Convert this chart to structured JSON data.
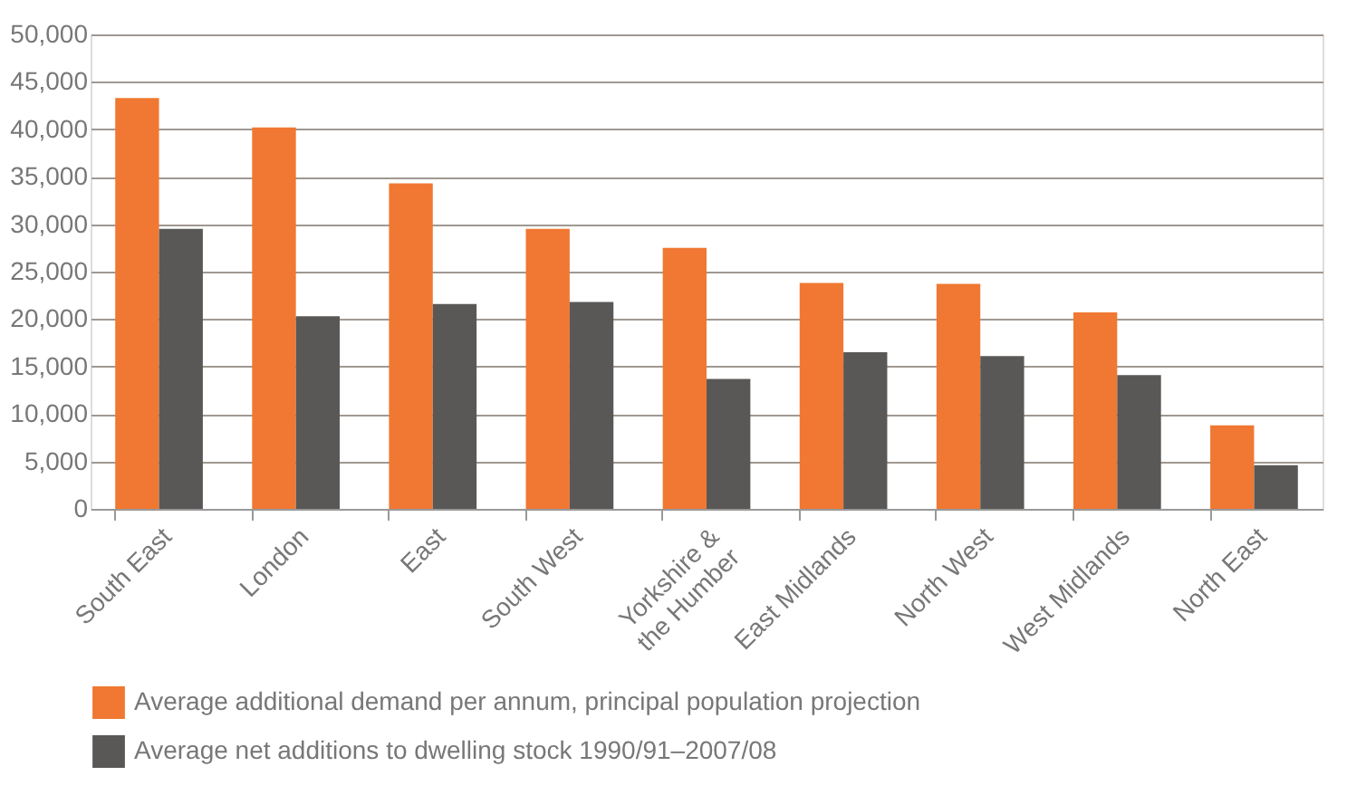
{
  "chart_data": {
    "type": "bar",
    "categories": [
      "South East",
      "London",
      "East",
      "South West",
      "Yorkshire &\nthe Humber",
      "East Midlands",
      "North West",
      "West Midlands",
      "North East"
    ],
    "series": [
      {
        "name": "Average additional demand per annum, principal population projection",
        "color": "#f07832",
        "values": [
          43300,
          40200,
          34300,
          29500,
          27500,
          23800,
          23700,
          20700,
          8800
        ]
      },
      {
        "name": "Average net additions to dwelling stock 1990/91–2007/08",
        "color": "#5a5856",
        "values": [
          29500,
          20300,
          21600,
          21800,
          13700,
          16500,
          16100,
          14100,
          4600
        ]
      }
    ],
    "ylim": [
      0,
      50000
    ],
    "yticks": [
      0,
      {
        "value": 5000,
        "label": "5,000"
      },
      {
        "value": 10000,
        "label": "10,000"
      },
      {
        "value": 15000,
        "label": "15,000"
      },
      {
        "value": 20000,
        "label": "20,000"
      },
      {
        "value": 25000,
        "label": "25,000"
      },
      {
        "value": 30000,
        "label": "30,000"
      },
      {
        "value": 35000,
        "label": "35,000"
      },
      {
        "value": 40000,
        "label": "40,000"
      },
      {
        "value": 45000,
        "label": "45,000"
      },
      {
        "value": 50000,
        "label": "50,000"
      }
    ],
    "grid": "y",
    "legend": "bottom"
  }
}
